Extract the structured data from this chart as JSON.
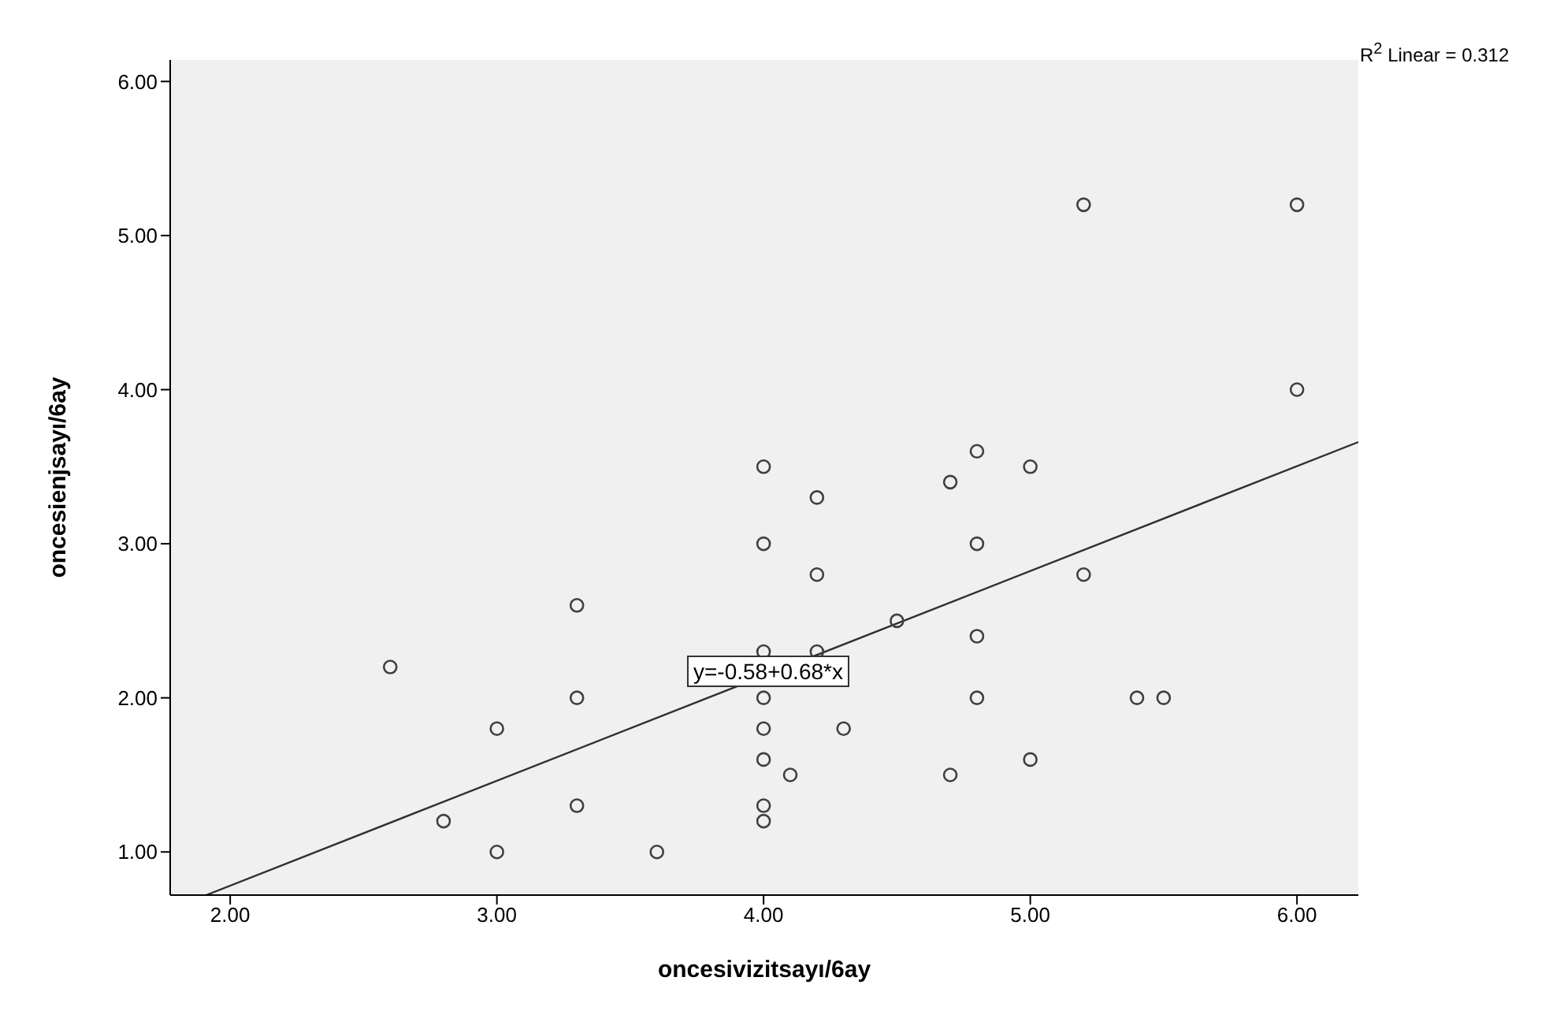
{
  "chart_data": {
    "type": "scatter",
    "xlabel": "oncesivizitsayı/6ay",
    "ylabel": "oncesienjsayı/6ay",
    "xlim": [
      1.775,
      6.23
    ],
    "ylim": [
      0.72,
      6.14
    ],
    "xticks": [
      {
        "value": 2,
        "label": "2.00"
      },
      {
        "value": 3,
        "label": "3.00"
      },
      {
        "value": 4,
        "label": "4.00"
      },
      {
        "value": 5,
        "label": "5.00"
      },
      {
        "value": 6,
        "label": "6.00"
      }
    ],
    "yticks": [
      {
        "value": 1,
        "label": "1.00"
      },
      {
        "value": 2,
        "label": "2.00"
      },
      {
        "value": 3,
        "label": "3.00"
      },
      {
        "value": 4,
        "label": "4.00"
      },
      {
        "value": 5,
        "label": "5.00"
      },
      {
        "value": 6,
        "label": "6.00"
      }
    ],
    "grid": false,
    "marker": "circle",
    "series": [
      {
        "color": "#404040",
        "x": [
          2.6,
          2.8,
          3.0,
          3.0,
          3.3,
          3.3,
          3.3,
          3.6,
          4.0,
          4.0,
          4.0,
          4.0,
          4.0,
          4.0,
          4.0,
          4.0,
          4.1,
          4.2,
          4.2,
          4.2,
          4.3,
          4.5,
          4.7,
          4.7,
          4.8,
          4.8,
          4.8,
          4.8,
          5.0,
          5.0,
          5.2,
          5.2,
          5.4,
          5.5,
          6.0,
          6.0
        ],
        "values": [
          2.2,
          1.2,
          1.8,
          1.0,
          2.6,
          2.0,
          1.3,
          1.0,
          3.5,
          3.0,
          2.3,
          2.0,
          1.8,
          1.6,
          1.3,
          1.2,
          1.5,
          3.3,
          2.8,
          2.3,
          1.8,
          2.5,
          3.4,
          1.5,
          3.6,
          3.0,
          2.4,
          2.0,
          3.5,
          1.6,
          5.2,
          2.8,
          2.0,
          2.0,
          5.2,
          4.0
        ]
      },
      {
        "type": "line",
        "color": "#303030",
        "marker": "none",
        "x": [
          1.91,
          6.23
        ],
        "values": [
          0.72,
          3.66
        ]
      }
    ],
    "annotations": [
      "y=-0.58+0.68*x",
      "R$^{2}$ Linear = 0.312"
    ]
  }
}
